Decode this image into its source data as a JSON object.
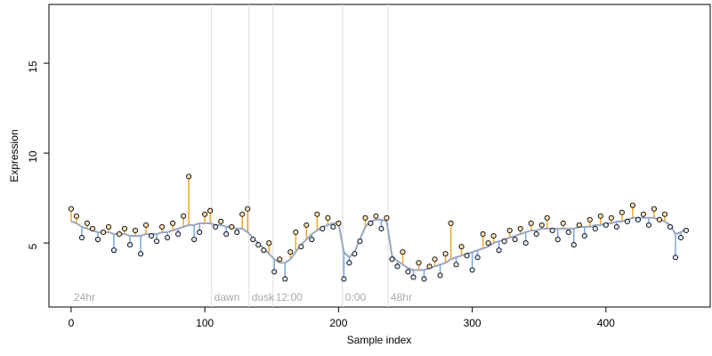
{
  "chart_data": {
    "type": "scatter",
    "xlabel": "Sample index",
    "ylabel": "Expression",
    "xlim": [
      -16.6,
      478
    ],
    "ylim": [
      1.44,
      18.27
    ],
    "xticks": [
      0,
      100,
      200,
      300,
      400
    ],
    "yticks": [
      5,
      10,
      15
    ],
    "above_color": "#f5a623",
    "below_color": "#7aa6e0",
    "fit_color": "#9aa6bd",
    "vlines": [
      105,
      133,
      151,
      203,
      237
    ],
    "annotations": [
      {
        "x": 0,
        "text": "24hr"
      },
      {
        "x": 105,
        "text": "dawn"
      },
      {
        "x": 133,
        "text": "dusk"
      },
      {
        "x": 151,
        "text": "12:00"
      },
      {
        "x": 203,
        "text": "0:00"
      },
      {
        "x": 237,
        "text": "48hr"
      }
    ],
    "x": [
      0,
      4,
      8,
      12,
      16,
      20,
      24,
      28,
      32,
      36,
      40,
      44,
      48,
      52,
      56,
      60,
      64,
      68,
      72,
      76,
      80,
      84,
      88,
      92,
      96,
      100,
      104,
      108,
      112,
      116,
      120,
      124,
      128,
      132,
      136,
      140,
      144,
      148,
      152,
      156,
      160,
      164,
      168,
      172,
      176,
      180,
      184,
      188,
      192,
      196,
      200,
      204,
      208,
      212,
      216,
      220,
      224,
      228,
      232,
      236,
      240,
      244,
      248,
      252,
      256,
      260,
      264,
      268,
      272,
      276,
      280,
      284,
      288,
      292,
      296,
      300,
      304,
      308,
      312,
      316,
      320,
      324,
      328,
      332,
      336,
      340,
      344,
      348,
      352,
      356,
      360,
      364,
      368,
      372,
      376,
      380,
      384,
      388,
      392,
      396,
      400,
      404,
      408,
      412,
      416,
      420,
      424,
      428,
      432,
      436,
      440,
      444,
      448,
      452,
      456,
      460
    ],
    "series": [
      {
        "values": [
          6.9,
          6.5,
          5.3,
          6.1,
          5.8,
          5.2,
          5.6,
          5.9,
          4.6,
          5.5,
          5.8,
          4.9,
          5.7,
          4.4,
          6.0,
          5.4,
          5.1,
          5.9,
          5.3,
          6.1,
          5.5,
          6.5,
          8.7,
          5.2,
          5.6,
          6.6,
          6.8,
          5.9,
          6.2,
          5.5,
          5.9,
          5.6,
          6.6,
          6.9,
          5.2,
          4.9,
          4.6,
          5.0,
          3.4,
          4.1,
          3.0,
          4.5,
          5.6,
          4.8,
          6.0,
          5.2,
          6.6,
          5.8,
          6.4,
          5.9,
          6.1,
          3.0,
          3.9,
          4.4,
          5.1,
          6.4,
          6.1,
          6.5,
          5.8,
          6.4,
          4.1,
          3.7,
          4.5,
          3.4,
          3.1,
          3.9,
          3.0,
          3.7,
          4.1,
          3.2,
          4.4,
          6.1,
          3.8,
          4.8,
          4.3,
          3.5,
          4.2,
          5.5,
          5.0,
          5.4,
          4.6,
          5.1,
          5.7,
          5.2,
          5.8,
          5.0,
          6.1,
          5.5,
          6.0,
          6.4,
          5.7,
          5.2,
          6.1,
          5.6,
          4.9,
          6.0,
          5.4,
          6.3,
          5.8,
          6.5,
          6.0,
          6.4,
          5.9,
          6.7,
          6.2,
          7.1,
          6.3,
          6.6,
          6.0,
          6.9,
          6.3,
          6.6,
          5.9,
          4.2,
          5.3,
          5.7
        ]
      },
      {
        "values": [
          6.2,
          6.1,
          5.9,
          5.8,
          5.7,
          5.6,
          5.6,
          5.6,
          5.5,
          5.5,
          5.5,
          5.4,
          5.4,
          5.4,
          5.5,
          5.5,
          5.5,
          5.6,
          5.6,
          5.7,
          5.8,
          5.9,
          6.0,
          6.0,
          6.1,
          6.1,
          6.1,
          6.0,
          6.0,
          5.9,
          5.9,
          5.8,
          5.8,
          5.6,
          5.3,
          5.0,
          4.7,
          4.4,
          4.1,
          3.9,
          3.9,
          4.1,
          4.5,
          4.9,
          5.2,
          5.5,
          5.7,
          5.9,
          6.0,
          6.1,
          6.1,
          4.5,
          4.2,
          4.5,
          5.2,
          5.9,
          6.2,
          6.3,
          6.3,
          6.2,
          4.3,
          4.0,
          3.8,
          3.6,
          3.5,
          3.5,
          3.5,
          3.6,
          3.7,
          3.8,
          3.9,
          4.1,
          4.2,
          4.3,
          4.4,
          4.5,
          4.6,
          4.7,
          4.8,
          5.0,
          5.1,
          5.2,
          5.3,
          5.4,
          5.5,
          5.6,
          5.7,
          5.7,
          5.8,
          5.8,
          5.8,
          5.8,
          5.8,
          5.8,
          5.8,
          5.9,
          5.9,
          5.9,
          6.0,
          6.0,
          6.1,
          6.1,
          6.2,
          6.2,
          6.3,
          6.4,
          6.4,
          6.4,
          6.4,
          6.4,
          6.3,
          6.2,
          6.0,
          5.5,
          5.6,
          5.8
        ]
      }
    ]
  }
}
